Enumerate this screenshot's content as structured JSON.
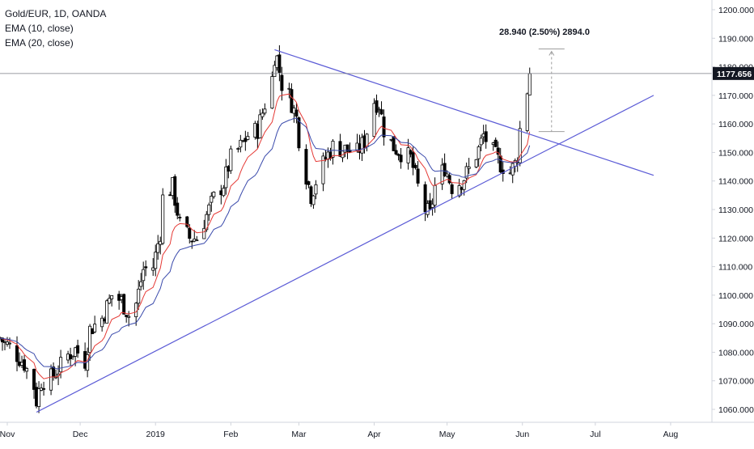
{
  "legend": {
    "symbol": "Gold/EUR, 1D, OANDA",
    "ema10": "EMA (10, close)",
    "ema20": "EMA (20, close)"
  },
  "measure": {
    "label": "28.940 (2.50%) 2894.0"
  },
  "colors": {
    "candle_up_body": "#ffffff",
    "candle_down_body": "#000000",
    "candle_outline": "#000000",
    "ema10": "#e53935",
    "ema20": "#3949ab",
    "trendline": "#5b5bd6",
    "price_label_bg": "#131722",
    "price_label_text": "#ffffff",
    "measure_line": "#9e9e9e",
    "axis_text": "#131722",
    "axis_border": "#d1d4dc"
  },
  "chart_data": {
    "type": "candlestick",
    "symbol": "Gold/EUR",
    "interval": "1D",
    "source": "OANDA",
    "current_price": "1177.656",
    "y_ticks": [
      "1060.000",
      "1070.000",
      "1080.000",
      "1090.000",
      "1100.000",
      "1110.000",
      "1120.000",
      "1130.000",
      "1140.000",
      "1150.000",
      "1160.000",
      "1170.000",
      "1180.000",
      "1190.000",
      "1200.000"
    ],
    "ylim": [
      1055,
      1204
    ],
    "x_ticks": [
      {
        "label": "Nov",
        "date": "2018-11-01"
      },
      {
        "label": "Dec",
        "date": "2018-12-01"
      },
      {
        "label": "2019",
        "date": "2019-01-01"
      },
      {
        "label": "Feb",
        "date": "2019-02-01"
      },
      {
        "label": "Mar",
        "date": "2019-03-01"
      },
      {
        "label": "Apr",
        "date": "2019-04-01"
      },
      {
        "label": "May",
        "date": "2019-05-01"
      },
      {
        "label": "Jun",
        "date": "2019-06-01"
      },
      {
        "label": "Jul",
        "date": "2019-07-01"
      },
      {
        "label": "Aug",
        "date": "2019-08-01"
      }
    ],
    "xlim": [
      "2018-10-29",
      "2019-08-18"
    ],
    "series": [
      {
        "name": "EMA (10, close)"
      },
      {
        "name": "EMA (20, close)"
      }
    ],
    "close_path": [
      [
        "2018-10-29",
        1085
      ],
      [
        "2018-10-31",
        1083
      ],
      [
        "2018-11-02",
        1082
      ],
      [
        "2018-11-06",
        1078
      ],
      [
        "2018-11-08",
        1076
      ],
      [
        "2018-11-12",
        1068
      ],
      [
        "2018-11-13",
        1063
      ],
      [
        "2018-11-15",
        1070
      ],
      [
        "2018-11-19",
        1071
      ],
      [
        "2018-11-22",
        1074
      ],
      [
        "2018-11-26",
        1079
      ],
      [
        "2018-11-29",
        1081
      ],
      [
        "2018-12-03",
        1077
      ],
      [
        "2018-12-05",
        1088
      ],
      [
        "2018-12-10",
        1092
      ],
      [
        "2018-12-14",
        1100
      ],
      [
        "2018-12-18",
        1098
      ],
      [
        "2018-12-21",
        1093
      ],
      [
        "2018-12-24",
        1097
      ],
      [
        "2018-12-27",
        1109
      ],
      [
        "2018-12-31",
        1110
      ],
      [
        "2019-01-03",
        1122
      ],
      [
        "2019-01-04",
        1134
      ],
      [
        "2019-01-08",
        1138
      ],
      [
        "2019-01-11",
        1125
      ],
      [
        "2019-01-15",
        1120
      ],
      [
        "2019-01-18",
        1120
      ],
      [
        "2019-01-22",
        1128
      ],
      [
        "2019-01-25",
        1134
      ],
      [
        "2019-01-29",
        1139
      ],
      [
        "2019-02-01",
        1148
      ],
      [
        "2019-02-05",
        1152
      ],
      [
        "2019-02-08",
        1156
      ],
      [
        "2019-02-12",
        1158
      ],
      [
        "2019-02-15",
        1167
      ],
      [
        "2019-02-18",
        1176
      ],
      [
        "2019-02-19",
        1184
      ],
      [
        "2019-02-20",
        1183
      ],
      [
        "2019-02-22",
        1174
      ],
      [
        "2019-02-25",
        1170
      ],
      [
        "2019-02-28",
        1162
      ],
      [
        "2019-03-01",
        1155
      ],
      [
        "2019-03-04",
        1142
      ],
      [
        "2019-03-06",
        1135
      ],
      [
        "2019-03-08",
        1140
      ],
      [
        "2019-03-12",
        1148
      ],
      [
        "2019-03-15",
        1152
      ],
      [
        "2019-03-20",
        1151
      ],
      [
        "2019-03-25",
        1150
      ],
      [
        "2019-03-28",
        1154
      ],
      [
        "2019-04-01",
        1168
      ],
      [
        "2019-04-03",
        1167
      ],
      [
        "2019-04-05",
        1158
      ],
      [
        "2019-04-09",
        1152
      ],
      [
        "2019-04-12",
        1150
      ],
      [
        "2019-04-16",
        1148
      ],
      [
        "2019-04-19",
        1138
      ],
      [
        "2019-04-22",
        1130
      ],
      [
        "2019-04-24",
        1128
      ],
      [
        "2019-04-26",
        1138
      ],
      [
        "2019-04-30",
        1145
      ],
      [
        "2019-05-03",
        1138
      ],
      [
        "2019-05-07",
        1140
      ],
      [
        "2019-05-10",
        1144
      ],
      [
        "2019-05-14",
        1151
      ],
      [
        "2019-05-16",
        1156
      ],
      [
        "2019-05-20",
        1150
      ],
      [
        "2019-05-23",
        1146
      ],
      [
        "2019-05-27",
        1143
      ],
      [
        "2019-05-29",
        1146
      ],
      [
        "2019-05-30",
        1149
      ],
      [
        "2019-05-31",
        1158
      ],
      [
        "2019-06-03",
        1172
      ],
      [
        "2019-06-04",
        1177.656
      ]
    ],
    "trendlines": [
      {
        "name": "lower-trendline",
        "points": [
          [
            "2018-11-13",
            1059
          ],
          [
            "2019-07-25",
            1170
          ]
        ]
      },
      {
        "name": "upper-trendline",
        "points": [
          [
            "2019-02-19",
            1186
          ],
          [
            "2019-07-25",
            1142
          ]
        ]
      }
    ],
    "measure": {
      "date": "2019-06-13",
      "from": 1157.3,
      "to": 1186.24,
      "change": "28.940",
      "percent": "2.50%",
      "pips": "2894.0"
    }
  }
}
